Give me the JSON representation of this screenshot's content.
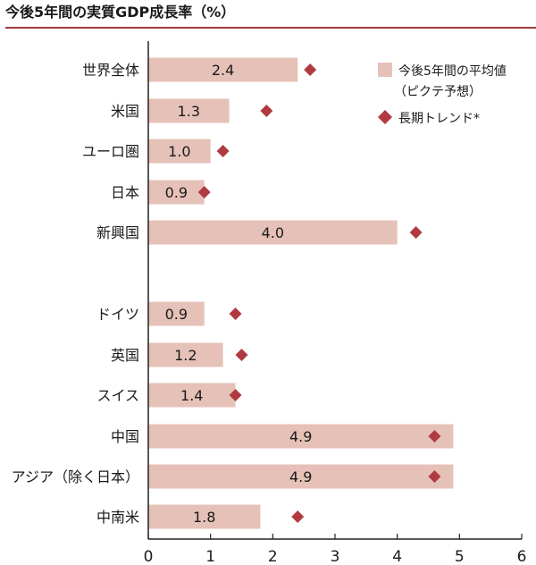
{
  "title": "今後5年間の実質GDP成長率（%）",
  "colors": {
    "bar": "#e6c1b8",
    "marker": "#b03a3f",
    "rule": "#a23a3e",
    "axis": "#222222"
  },
  "legend": {
    "bar_label_line1": "今後5年間の平均値",
    "bar_label_line2": "（ピクテ予想）",
    "marker_label": "長期トレンド*"
  },
  "chart_data": {
    "type": "bar",
    "orientation": "horizontal",
    "title": "今後5年間の実質GDP成長率（%）",
    "categories": [
      "世界全体",
      "米国",
      "ユーロ圏",
      "日本",
      "新興国",
      "ドイツ",
      "英国",
      "スイス",
      "中国",
      "アジア（除く日本）",
      "中南米"
    ],
    "groups": [
      [
        "世界全体",
        "米国",
        "ユーロ圏",
        "日本",
        "新興国"
      ],
      [
        "ドイツ",
        "英国",
        "スイス",
        "中国",
        "アジア（除く日本）",
        "中南米"
      ]
    ],
    "series": [
      {
        "name": "今後5年間の平均値（ピクテ予想）",
        "kind": "bar",
        "values": [
          2.4,
          1.3,
          1.0,
          0.9,
          4.0,
          0.9,
          1.2,
          1.4,
          4.9,
          4.9,
          1.8
        ],
        "labels": [
          "2.4",
          "1.3",
          "1.0",
          "0.9",
          "4.0",
          "0.9",
          "1.2",
          "1.4",
          "4.9",
          "4.9",
          "1.8"
        ]
      },
      {
        "name": "長期トレンド*",
        "kind": "marker",
        "values": [
          2.6,
          1.9,
          1.2,
          0.9,
          4.3,
          1.4,
          1.5,
          1.4,
          4.6,
          4.6,
          2.4
        ]
      }
    ],
    "xlim": [
      0,
      6
    ],
    "xticks": [
      "0",
      "1",
      "2",
      "3",
      "4",
      "5",
      "6"
    ],
    "legend_position": "top-right",
    "grid": false
  }
}
